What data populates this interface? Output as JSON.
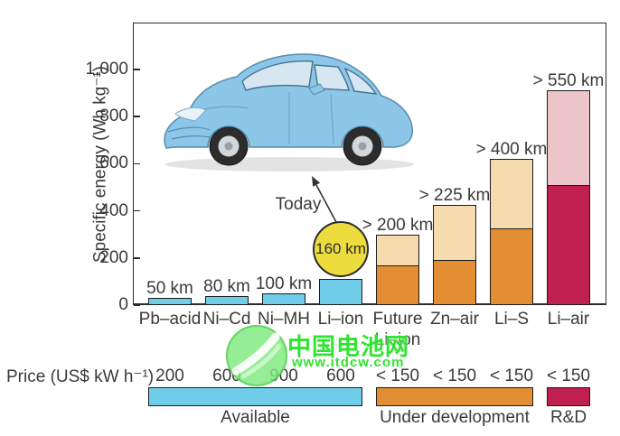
{
  "colors": {
    "available": "#6fcde9",
    "under_dev": "#e38e33",
    "under_dev_light": "#f6dbae",
    "rd": "#c0204f",
    "rd_light": "#ebc5c8",
    "highlight_circle": "#ecdc3e",
    "watermark_green": "#2ee52e"
  },
  "chart_data": {
    "type": "bar",
    "title": "",
    "xlabel": "",
    "ylabel": "Specific energy (Wh kg⁻¹)",
    "ylim": [
      0,
      1100
    ],
    "grid": false,
    "yticks": [
      {
        "value": 0,
        "label": "0"
      },
      {
        "value": 200,
        "label": "200"
      },
      {
        "value": 400,
        "label": "400"
      },
      {
        "value": 600,
        "label": "600"
      },
      {
        "value": 800,
        "label": "800"
      },
      {
        "value": 1000,
        "label": "1,000"
      }
    ],
    "today_label": "Today",
    "bars": [
      {
        "label": "Pb–acid",
        "range": "50 km",
        "status": "available",
        "segments": [
          {
            "status": "available",
            "from": 0,
            "to": 30
          }
        ]
      },
      {
        "label": "Ni–Cd",
        "range": "80 km",
        "status": "available",
        "segments": [
          {
            "status": "available",
            "from": 0,
            "to": 38
          }
        ]
      },
      {
        "label": "Ni–MH",
        "range": "100 km",
        "status": "available",
        "segments": [
          {
            "status": "available",
            "from": 0,
            "to": 48
          }
        ]
      },
      {
        "label": "Li–ion",
        "range": "160 km",
        "range_highlighted": true,
        "status": "available",
        "segments": [
          {
            "status": "available",
            "from": 0,
            "to": 110
          }
        ]
      },
      {
        "label": "Future",
        "label_line2": "Li–ion",
        "range": "> 200 km",
        "status": "under_development",
        "segments": [
          {
            "status": "under_dev",
            "from": 0,
            "to": 170
          },
          {
            "status": "under_dev_light",
            "from": 170,
            "to": 300
          }
        ]
      },
      {
        "label": "Zn–air",
        "range": "> 225 km",
        "status": "under_development",
        "segments": [
          {
            "status": "under_dev",
            "from": 0,
            "to": 190
          },
          {
            "status": "under_dev_light",
            "from": 190,
            "to": 425
          }
        ]
      },
      {
        "label": "Li–S",
        "range": "> 400 km",
        "status": "under_development",
        "segments": [
          {
            "status": "under_dev",
            "from": 0,
            "to": 325
          },
          {
            "status": "under_dev_light",
            "from": 325,
            "to": 620
          }
        ]
      },
      {
        "label": "Li–air",
        "range": "> 550 km",
        "status": "rd",
        "segments": [
          {
            "status": "rd",
            "from": 0,
            "to": 510
          },
          {
            "status": "rd_light",
            "from": 510,
            "to": 910
          }
        ]
      }
    ]
  },
  "price_row": {
    "label": "Price (US$ kW h⁻¹)",
    "values": [
      "200",
      "600",
      "900",
      "600",
      "< 150",
      "< 150",
      "< 150",
      "< 150"
    ],
    "groups": [
      {
        "label": "Available",
        "status": "available",
        "from_col": 0,
        "to_col": 3
      },
      {
        "label": "Under development",
        "status": "under_dev",
        "from_col": 4,
        "to_col": 6
      },
      {
        "label": "R&D",
        "status": "rd",
        "from_col": 7,
        "to_col": 7
      }
    ]
  },
  "watermark": {
    "site_name": "中国电池网",
    "site_url": "www.itdcw.com"
  }
}
